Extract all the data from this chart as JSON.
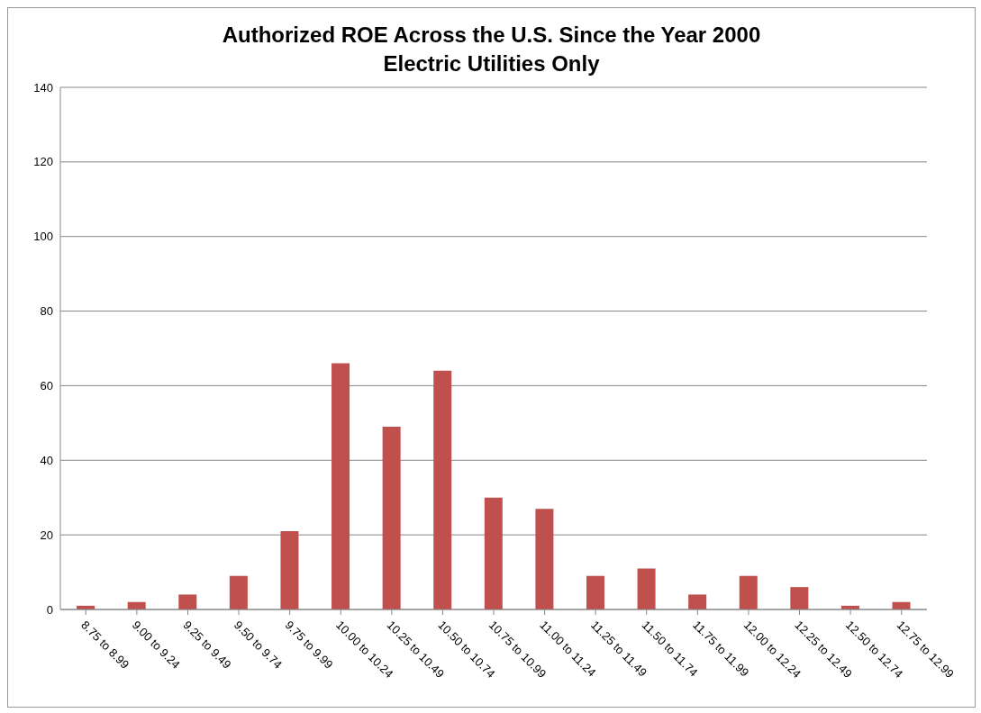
{
  "chart_data": {
    "type": "bar",
    "title": "Authorized ROE Across the U.S. Since the Year 2000",
    "subtitle": "Electric Utilities Only",
    "categories": [
      "8.75 to 8.99",
      "9.00 to 9.24",
      "9.25 to 9.49",
      "9.50 to 9.74",
      "9.75 to 9.99",
      "10.00 to 10.24",
      "10.25 to 10.49",
      "10.50 to 10.74",
      "10.75 to 10.99",
      "11.00 to 11.24",
      "11.25 to 11.49",
      "11.50 to 11.74",
      "11.75 to 11.99",
      "12.00 to 12.24",
      "12.25 to 12.49",
      "12.50 to 12.74",
      "12.75 to 12.99"
    ],
    "values": [
      1,
      2,
      4,
      9,
      21,
      66,
      49,
      64,
      30,
      27,
      9,
      11,
      4,
      9,
      6,
      1,
      2
    ],
    "color": "#c0504d",
    "ylim": [
      0,
      140
    ],
    "yticks": [
      0,
      20,
      40,
      60,
      80,
      100,
      120,
      140
    ],
    "grid": "y"
  }
}
